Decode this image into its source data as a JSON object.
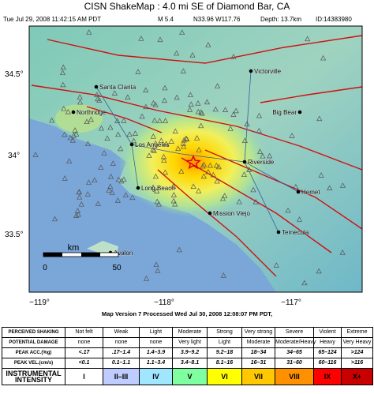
{
  "header": {
    "title": "CISN ShakeMap : 4.0 mi SE of Diamond Bar, CA",
    "info": [
      "Tue Jul 29, 2008 11:42:15 AM PDT",
      "M 5.4",
      "N33.96 W117.76",
      "Depth: 13.7km",
      "ID:14383980"
    ]
  },
  "map": {
    "lat_labels": [
      "34.5°",
      "34°",
      "33.5°"
    ],
    "lon_labels": [
      "−119°",
      "−118°",
      "−117°"
    ],
    "cities": [
      "Victorville",
      "Santa Clarita",
      "Northridge",
      "Big Bear",
      "Los Angeles",
      "Riverside",
      "Long Beach",
      "Hemet",
      "Mission Viejo",
      "Temecula",
      "Avalon"
    ],
    "scale": {
      "unit": "km",
      "labels": [
        "0",
        "50"
      ]
    }
  },
  "footer": "Map Version 7 Processed Wed Jul 30, 2008 12:08:07 PM PDT,",
  "legend": {
    "row_labels": [
      "PERCEIVED SHAKING",
      "POTENTIAL DAMAGE",
      "PEAK ACC.(%g)",
      "PEAK VEL.(cm/s)",
      "INSTRUMENTAL INTENSITY"
    ],
    "rows": [
      [
        "Not felt",
        "Weak",
        "Light",
        "Moderate",
        "Strong",
        "Very strong",
        "Severe",
        "Violent",
        "Extreme"
      ],
      [
        "none",
        "none",
        "none",
        "Very light",
        "Light",
        "Moderate",
        "Moderate/Heavy",
        "Heavy",
        "Very Heavy"
      ],
      [
        "<.17",
        ".17–1.4",
        "1.4–3.9",
        "3.9–9.2",
        "9.2–18",
        "18–34",
        "34–65",
        "65–124",
        ">124"
      ],
      [
        "<0.1",
        "0.1–1.1",
        "1.1–3.4",
        "3.4–8.1",
        "8.1–16",
        "16–31",
        "31–60",
        "60–116",
        ">116"
      ],
      [
        "I",
        "II–III",
        "IV",
        "V",
        "VI",
        "VII",
        "VIII",
        "IX",
        "X+"
      ]
    ]
  }
}
